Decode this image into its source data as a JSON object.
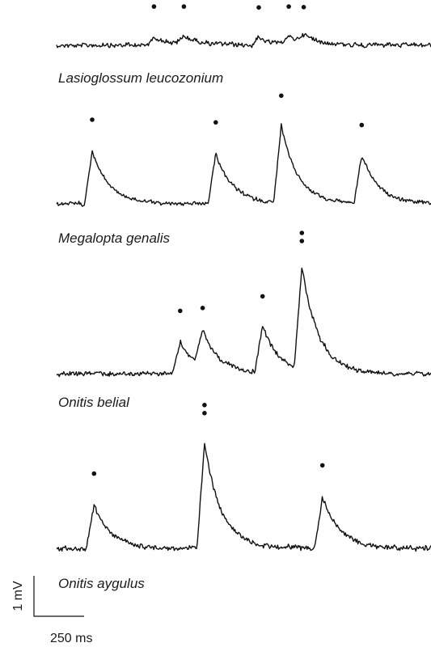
{
  "chart_data": {
    "type": "line",
    "panels": [
      {
        "name": "Lasioglossum leucozonium",
        "peaks": [
          {
            "t": 0.26,
            "a": 0.45,
            "dots": 1
          },
          {
            "t": 0.34,
            "a": 0.45,
            "dots": 1
          },
          {
            "t": 0.54,
            "a": 0.4,
            "dots": 1
          },
          {
            "t": 0.62,
            "a": 0.45,
            "dots": 1
          },
          {
            "t": 0.66,
            "a": 0.42,
            "dots": 1
          }
        ]
      },
      {
        "name": "Megalopta genalis",
        "peaks": [
          {
            "t": 0.095,
            "a": 2.0,
            "dots": 1
          },
          {
            "t": 0.425,
            "a": 1.9,
            "dots": 1
          },
          {
            "t": 0.6,
            "a": 2.9,
            "dots": 1
          },
          {
            "t": 0.815,
            "a": 1.8,
            "dots": 1
          }
        ]
      },
      {
        "name": "Onitis belial",
        "peaks": [
          {
            "t": 0.33,
            "a": 1.1,
            "dots": 1
          },
          {
            "t": 0.39,
            "a": 1.2,
            "dots": 1
          },
          {
            "t": 0.55,
            "a": 1.6,
            "dots": 1
          },
          {
            "t": 0.655,
            "a": 3.5,
            "dots": 2
          }
        ]
      },
      {
        "name": "Onitis aygulus",
        "peaks": [
          {
            "t": 0.1,
            "a": 1.6,
            "dots": 1
          },
          {
            "t": 0.395,
            "a": 3.8,
            "dots": 2
          },
          {
            "t": 0.71,
            "a": 1.9,
            "dots": 1
          }
        ]
      }
    ],
    "scale_bar": {
      "voltage_label": "1 mV",
      "time_label": "250 ms"
    }
  }
}
